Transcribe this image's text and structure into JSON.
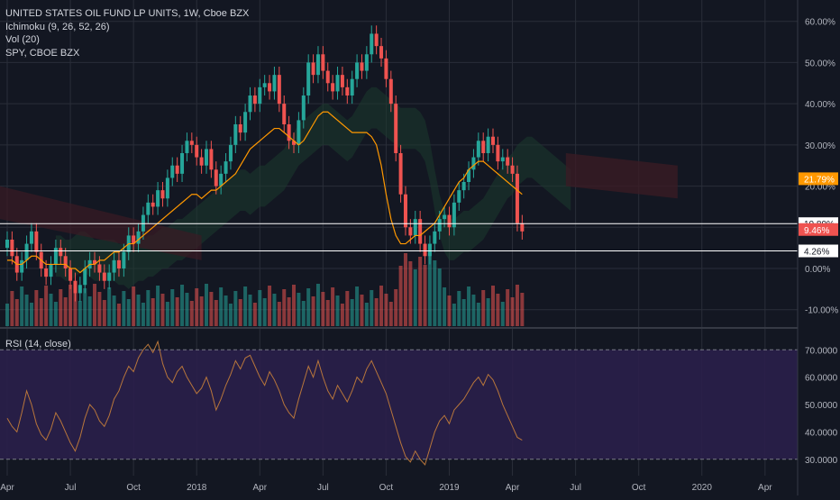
{
  "legend": {
    "symbol": "UNITED STATES OIL FUND LP UNITS, 1W, Cboe BZX",
    "ichimoku": "Ichimoku (9, 26, 52, 26)",
    "volume": "Vol (20)",
    "compare": "SPY, CBOE BZX"
  },
  "rsi_legend": "RSI (14, close)",
  "colors": {
    "background": "#131722",
    "up": "#26a69a",
    "down": "#ef5350",
    "orange_line": "#ff9800",
    "cloud_green": "#1b3a2e",
    "cloud_red": "#3a1b24",
    "rsi_band": "#2a1f4a",
    "rsi_line": "#b8763b",
    "grid": "#2a2e39",
    "axis_text": "#b2b5be"
  },
  "price_badges": {
    "orange": "21.79%",
    "upper_line": "10.89%",
    "red": "9.46%",
    "lower_line": "4.26%"
  },
  "chart_data": [
    {
      "type": "candlestick",
      "title": "UNITED STATES OIL FUND LP UNITS, 1W, Cboe BZX",
      "y_unit": "percent change",
      "ylim": [
        -14,
        63
      ],
      "y_ticks": [
        "60.00%",
        "50.00%",
        "40.00%",
        "30.00%",
        "20.00%",
        "10.00%",
        "0.00%",
        "-10.00%"
      ],
      "y_tick_values": [
        60,
        50,
        40,
        30,
        20,
        10,
        0,
        -10
      ],
      "x_tick_labels": [
        "Apr",
        "Jul",
        "Oct",
        "2018",
        "Apr",
        "Jul",
        "Oct",
        "2019",
        "Apr",
        "Jul",
        "Oct",
        "2020",
        "Apr"
      ],
      "x_tick_week_index": [
        0,
        13,
        26,
        39,
        52,
        65,
        78,
        91,
        104,
        117,
        130,
        143,
        156
      ],
      "close_series": [
        7,
        3,
        -1,
        2,
        6,
        9,
        4,
        0,
        -2,
        1,
        5,
        3,
        0,
        -3,
        -6,
        -4,
        0,
        2,
        1,
        -1,
        -3,
        -1,
        2,
        0,
        4,
        8,
        6,
        9,
        13,
        16,
        15,
        19,
        17,
        22,
        25,
        23,
        28,
        31,
        30,
        27,
        25,
        29,
        24,
        20,
        23,
        26,
        30,
        35,
        33,
        38,
        42,
        40,
        44,
        45,
        43,
        47,
        40,
        35,
        31,
        30,
        36,
        42,
        50,
        47,
        52,
        48,
        45,
        43,
        47,
        44,
        42,
        46,
        50,
        48,
        52,
        57,
        54,
        51,
        46,
        40,
        28,
        18,
        10,
        8,
        12,
        6,
        3,
        6,
        9,
        12,
        13,
        10,
        16,
        19,
        21,
        24,
        27,
        31,
        28,
        32,
        30,
        26,
        27,
        25,
        23,
        11,
        9
      ],
      "kijun_orange": [
        2,
        2,
        1,
        1,
        2,
        3,
        3,
        2,
        1,
        1,
        1,
        1,
        1,
        0,
        0,
        -1,
        0,
        1,
        1,
        2,
        2,
        3,
        4,
        4,
        5,
        6,
        6,
        7,
        8,
        9,
        10,
        11,
        12,
        13,
        14,
        15,
        16,
        17,
        18,
        18,
        17,
        18,
        19,
        19,
        20,
        21,
        22,
        23,
        25,
        27,
        29,
        30,
        31,
        32,
        33,
        34,
        34,
        33,
        32,
        31,
        30,
        31,
        33,
        35,
        37,
        38,
        38,
        37,
        36,
        35,
        34,
        33,
        33,
        33,
        33,
        32,
        30,
        25,
        18,
        12,
        8,
        6,
        6,
        7,
        8,
        8,
        9,
        10,
        11,
        13,
        15,
        17,
        19,
        21,
        22,
        24,
        25,
        26,
        26,
        25,
        24,
        23,
        22,
        21,
        20,
        19,
        18
      ],
      "rsi": [
        45,
        42,
        40,
        47,
        55,
        50,
        43,
        39,
        37,
        41,
        47,
        44,
        40,
        36,
        33,
        38,
        45,
        50,
        48,
        44,
        42,
        46,
        52,
        55,
        60,
        64,
        62,
        67,
        70,
        72,
        69,
        73,
        65,
        60,
        58,
        62,
        64,
        60,
        57,
        54,
        56,
        60,
        55,
        48,
        52,
        57,
        61,
        66,
        63,
        67,
        68,
        64,
        60,
        57,
        62,
        59,
        55,
        50,
        47,
        45,
        52,
        58,
        64,
        60,
        66,
        60,
        55,
        52,
        57,
        54,
        51,
        55,
        60,
        58,
        63,
        66,
        62,
        58,
        54,
        48,
        42,
        36,
        31,
        29,
        33,
        30,
        28,
        34,
        40,
        44,
        46,
        43,
        48,
        50,
        52,
        55,
        58,
        60,
        57,
        61,
        59,
        55,
        50,
        46,
        42,
        38,
        37
      ],
      "rsi_ylim": [
        24,
        77
      ],
      "rsi_ticks": [
        "70.0000",
        "60.0000",
        "50.0000",
        "40.0000",
        "30.0000"
      ],
      "rsi_tick_values": [
        70,
        60,
        50,
        40,
        30
      ]
    }
  ]
}
